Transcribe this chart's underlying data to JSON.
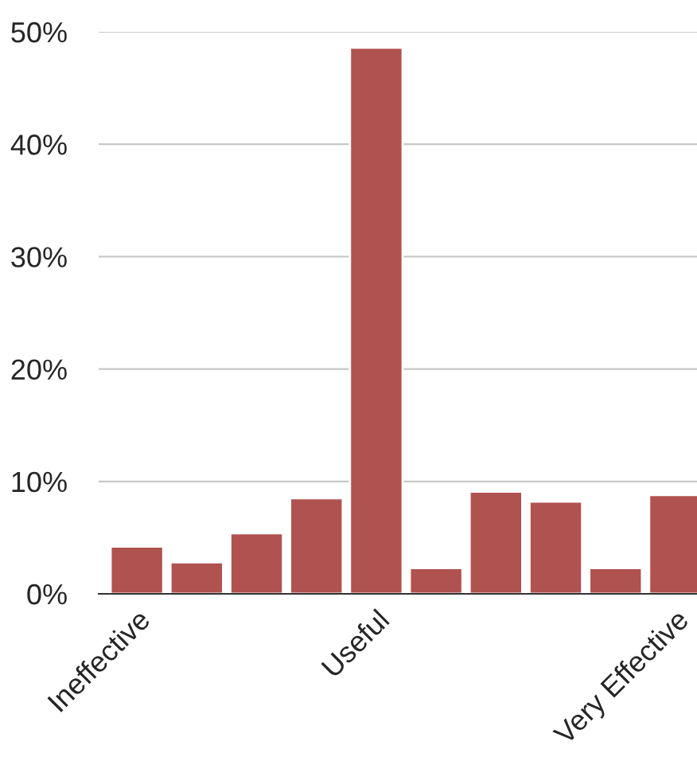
{
  "chart_data": {
    "type": "bar",
    "categories": [
      "Ineffective",
      null,
      null,
      null,
      "Useful",
      null,
      null,
      null,
      null,
      "Very Effective"
    ],
    "values": [
      4.2,
      2.8,
      5.4,
      8.5,
      48.6,
      2.3,
      9.1,
      8.2,
      2.3,
      8.8
    ],
    "color": "#b0524f",
    "ylim": [
      0,
      50
    ],
    "yticks": [
      {
        "value": 0,
        "label": "0%"
      },
      {
        "value": 10,
        "label": "10%"
      },
      {
        "value": 20,
        "label": "20%"
      },
      {
        "value": 30,
        "label": "30%"
      },
      {
        "value": 40,
        "label": "40%"
      },
      {
        "value": 50,
        "label": "50%"
      }
    ],
    "grid": "y"
  }
}
